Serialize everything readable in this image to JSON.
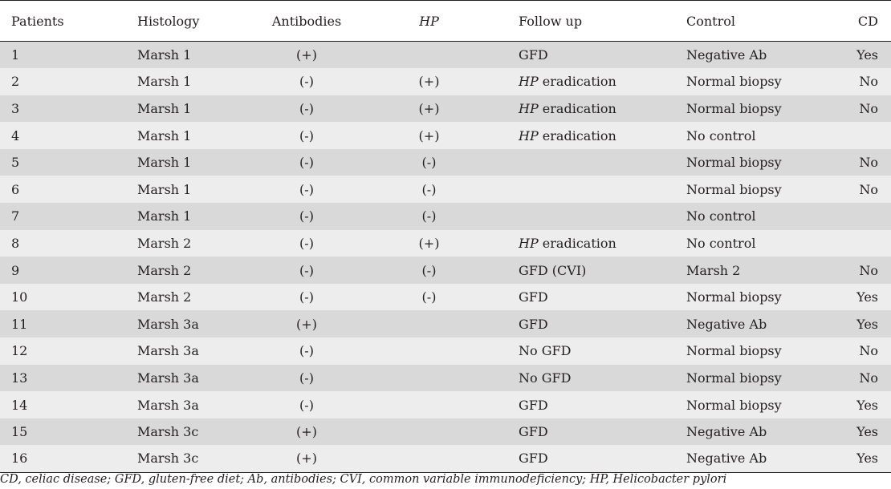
{
  "table": {
    "headers": {
      "patients": "Patients",
      "histology": "Histology",
      "antibodies": "Antibodies",
      "hp": "HP",
      "follow_up": "Follow up",
      "control": "Control",
      "cd": "CD"
    },
    "rows": [
      {
        "patient": "1",
        "histology": "Marsh 1",
        "antibodies": "(+)",
        "hp": "",
        "follow_hp": "",
        "follow_rest": "GFD",
        "control": "Negative Ab",
        "cd": "Yes"
      },
      {
        "patient": "2",
        "histology": "Marsh 1",
        "antibodies": "(-)",
        "hp": "(+)",
        "follow_hp": "HP",
        "follow_rest": " eradication",
        "control": "Normal biopsy",
        "cd": "No"
      },
      {
        "patient": "3",
        "histology": "Marsh 1",
        "antibodies": "(-)",
        "hp": "(+)",
        "follow_hp": "HP",
        "follow_rest": " eradication",
        "control": "Normal biopsy",
        "cd": "No"
      },
      {
        "patient": "4",
        "histology": "Marsh 1",
        "antibodies": "(-)",
        "hp": "(+)",
        "follow_hp": "HP",
        "follow_rest": " eradication",
        "control": "No control",
        "cd": ""
      },
      {
        "patient": "5",
        "histology": "Marsh 1",
        "antibodies": "(-)",
        "hp": "(-)",
        "follow_hp": "",
        "follow_rest": "",
        "control": "Normal biopsy",
        "cd": "No"
      },
      {
        "patient": "6",
        "histology": "Marsh 1",
        "antibodies": "(-)",
        "hp": "(-)",
        "follow_hp": "",
        "follow_rest": "",
        "control": "Normal biopsy",
        "cd": "No"
      },
      {
        "patient": "7",
        "histology": "Marsh 1",
        "antibodies": "(-)",
        "hp": "(-)",
        "follow_hp": "",
        "follow_rest": "",
        "control": "No control",
        "cd": ""
      },
      {
        "patient": "8",
        "histology": "Marsh 2",
        "antibodies": "(-)",
        "hp": "(+)",
        "follow_hp": "HP",
        "follow_rest": " eradication",
        "control": "No control",
        "cd": ""
      },
      {
        "patient": "9",
        "histology": "Marsh 2",
        "antibodies": "(-)",
        "hp": "(-)",
        "follow_hp": "",
        "follow_rest": "GFD (CVI)",
        "control": "Marsh 2",
        "cd": "No"
      },
      {
        "patient": "10",
        "histology": "Marsh 2",
        "antibodies": "(-)",
        "hp": "(-)",
        "follow_hp": "",
        "follow_rest": "GFD",
        "control": "Normal biopsy",
        "cd": "Yes"
      },
      {
        "patient": "11",
        "histology": "Marsh 3a",
        "antibodies": "(+)",
        "hp": "",
        "follow_hp": "",
        "follow_rest": "GFD",
        "control": "Negative Ab",
        "cd": "Yes"
      },
      {
        "patient": "12",
        "histology": "Marsh 3a",
        "antibodies": "(-)",
        "hp": "",
        "follow_hp": "",
        "follow_rest": "No GFD",
        "control": "Normal biopsy",
        "cd": "No"
      },
      {
        "patient": "13",
        "histology": "Marsh 3a",
        "antibodies": "(-)",
        "hp": "",
        "follow_hp": "",
        "follow_rest": "No GFD",
        "control": "Normal biopsy",
        "cd": "No"
      },
      {
        "patient": "14",
        "histology": "Marsh 3a",
        "antibodies": "(-)",
        "hp": "",
        "follow_hp": "",
        "follow_rest": "GFD",
        "control": "Normal biopsy",
        "cd": "Yes"
      },
      {
        "patient": "15",
        "histology": "Marsh 3c",
        "antibodies": "(+)",
        "hp": "",
        "follow_hp": "",
        "follow_rest": "GFD",
        "control": "Negative Ab",
        "cd": "Yes"
      },
      {
        "patient": "16",
        "histology": "Marsh 3c",
        "antibodies": "(+)",
        "hp": "",
        "follow_hp": "",
        "follow_rest": "GFD",
        "control": "Negative Ab",
        "cd": "Yes"
      }
    ]
  },
  "footnote": "CD, celiac disease; GFD, gluten-free diet; Ab, antibodies; CVI, common variable immunodeficiency; HP, Helicobacter pylori",
  "colors": {
    "row_dark": "#d9d9d9",
    "row_light": "#ededed",
    "rule": "#231f20"
  }
}
